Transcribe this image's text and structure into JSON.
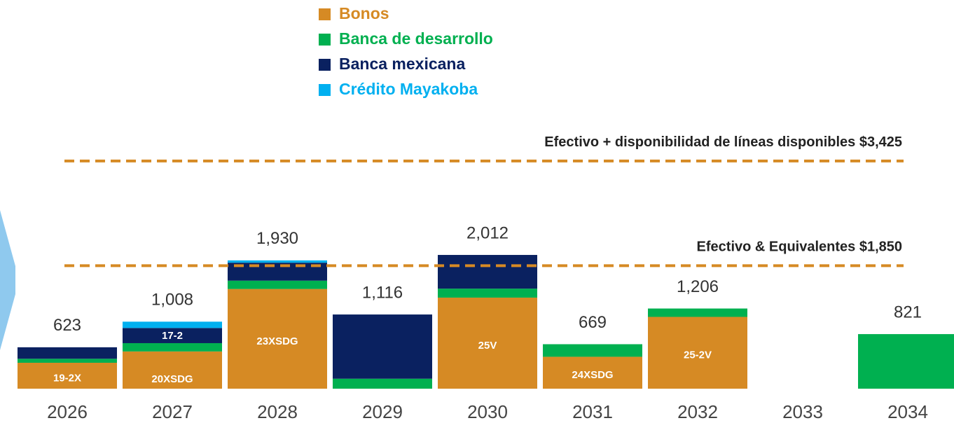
{
  "chart_data": {
    "type": "stacked_bar",
    "categories": [
      "2026",
      "2027",
      "2028",
      "2029",
      "2030",
      "2031",
      "2032",
      "2033",
      "2034"
    ],
    "series": [
      {
        "name": "Bonos",
        "color": "#d68a24",
        "values": [
          390,
          560,
          1500,
          0,
          1370,
          480,
          1080,
          null,
          0
        ]
      },
      {
        "name": "Banca de desarrollo",
        "color": "#00b050",
        "values": [
          60,
          125,
          125,
          150,
          135,
          189,
          126,
          null,
          821
        ]
      },
      {
        "name": "Banca mexicana",
        "color": "#0a2160",
        "values": [
          173,
          228,
          270,
          966,
          507,
          0,
          0,
          null,
          0
        ]
      },
      {
        "name": "Crédito Mayakoba",
        "color": "#00b0f0",
        "values": [
          0,
          95,
          35,
          0,
          0,
          0,
          0,
          null,
          0
        ]
      }
    ],
    "totals": [
      623,
      1008,
      1930,
      1116,
      2012,
      669,
      1206,
      null,
      821
    ],
    "total_labels": [
      "623",
      "1,008",
      "1,930",
      "1,116",
      "2,012",
      "669",
      "1,206",
      null,
      "821"
    ],
    "bond_labels": [
      [
        "19-2X"
      ],
      [
        "20XSDG",
        "17-2"
      ],
      [
        "23XSDG"
      ],
      [],
      [
        "25V"
      ],
      [
        "24XSDG"
      ],
      [
        "25-2V"
      ],
      [],
      []
    ],
    "reference_lines": [
      {
        "value": 3425,
        "label": "Efectivo + disponibilidad de líneas disponibles $3,425"
      },
      {
        "value": 1850,
        "label": "Efectivo & Equivalentes $1,850"
      }
    ],
    "reference_color": "#d68a24",
    "ylim": [
      0,
      3740
    ]
  }
}
